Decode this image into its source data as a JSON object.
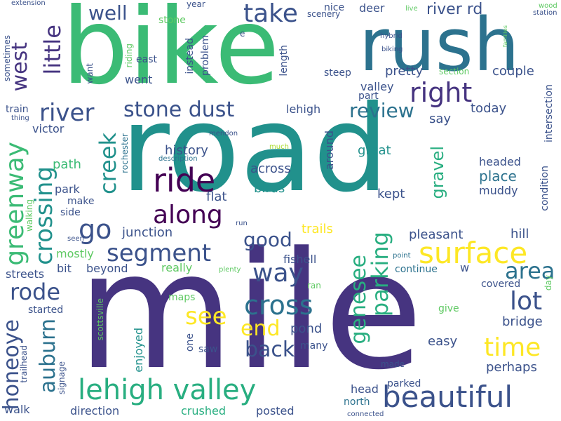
{
  "palette": {
    "dark_purple": "#440154",
    "indigo": "#463480",
    "slate_blue": "#3b528b",
    "steel_blue": "#2c728e",
    "teal": "#21918c",
    "sea_green": "#28ae80",
    "green": "#3bbb75",
    "light_green": "#5ec962",
    "lime": "#addc30",
    "yellow": "#fde725"
  },
  "words": [
    {
      "text": "road",
      "color": "#21918c"
    },
    {
      "text": "mile",
      "color": "#463480"
    },
    {
      "text": "bike",
      "color": "#3bbb75"
    },
    {
      "text": "rush",
      "color": "#2c728e"
    },
    {
      "text": "lehigh valley",
      "color": "#28ae80"
    },
    {
      "text": "beautiful",
      "color": "#3b528b"
    },
    {
      "text": "surface",
      "color": "#fde725"
    },
    {
      "text": "ride",
      "color": "#440154"
    },
    {
      "text": "stone dust",
      "color": "#3b528b"
    },
    {
      "text": "segment",
      "color": "#3b528b"
    },
    {
      "text": "cross",
      "color": "#2c728e"
    },
    {
      "text": "way",
      "color": "#3b528b"
    },
    {
      "text": "right",
      "color": "#463480"
    },
    {
      "text": "take",
      "color": "#3b528b"
    },
    {
      "text": "river",
      "color": "#3b528b"
    },
    {
      "text": "along",
      "color": "#440154"
    },
    {
      "text": "go",
      "color": "#3b528b"
    },
    {
      "text": "time",
      "color": "#fde725"
    },
    {
      "text": "lot",
      "color": "#3b528b"
    },
    {
      "text": "end",
      "color": "#fde725"
    },
    {
      "text": "back",
      "color": "#3b528b"
    },
    {
      "text": "see",
      "color": "#fde725"
    },
    {
      "text": "area",
      "color": "#2c728e"
    },
    {
      "text": "review",
      "color": "#2c728e"
    },
    {
      "text": "rode",
      "color": "#3b528b"
    },
    {
      "text": "well",
      "color": "#3b528b"
    },
    {
      "text": "good",
      "color": "#3b528b"
    },
    {
      "text": "river rd",
      "color": "#3b528b"
    },
    {
      "text": "honeoye",
      "color": "#3b528b"
    },
    {
      "text": "genesee",
      "color": "#28ae80"
    },
    {
      "text": "parking",
      "color": "#28ae80"
    },
    {
      "text": "greenway",
      "color": "#3bbb75"
    },
    {
      "text": "crossing",
      "color": "#21918c"
    },
    {
      "text": "creek",
      "color": "#21918c"
    },
    {
      "text": "auburn",
      "color": "#2c728e"
    },
    {
      "text": "little",
      "color": "#463480"
    },
    {
      "text": "west",
      "color": "#463480"
    },
    {
      "text": "gravel",
      "color": "#28ae80"
    },
    {
      "text": "pretty",
      "color": "#3b528b"
    },
    {
      "text": "couple",
      "color": "#3b528b"
    },
    {
      "text": "valley",
      "color": "#3b528b"
    },
    {
      "text": "lehigh",
      "color": "#3b528b"
    },
    {
      "text": "today",
      "color": "#3b528b"
    },
    {
      "text": "say",
      "color": "#3b528b"
    },
    {
      "text": "across",
      "color": "#3b528b"
    },
    {
      "text": "great",
      "color": "#21918c"
    },
    {
      "text": "place",
      "color": "#2c728e"
    },
    {
      "text": "headed",
      "color": "#3b528b"
    },
    {
      "text": "muddy",
      "color": "#3b528b"
    },
    {
      "text": "birds",
      "color": "#21918c"
    },
    {
      "text": "kept",
      "color": "#3b528b"
    },
    {
      "text": "history",
      "color": "#3b528b"
    },
    {
      "text": "flat",
      "color": "#3b528b"
    },
    {
      "text": "junction",
      "color": "#3b528b"
    },
    {
      "text": "trails",
      "color": "#fde725"
    },
    {
      "text": "pleasant",
      "color": "#3b528b"
    },
    {
      "text": "hill",
      "color": "#3b528b"
    },
    {
      "text": "park",
      "color": "#3b528b"
    },
    {
      "text": "path",
      "color": "#3bbb75"
    },
    {
      "text": "make",
      "color": "#3b528b"
    },
    {
      "text": "side",
      "color": "#3b528b"
    },
    {
      "text": "victor",
      "color": "#3b528b"
    },
    {
      "text": "train",
      "color": "#3b528b"
    },
    {
      "text": "fishell",
      "color": "#3b528b"
    },
    {
      "text": "continue",
      "color": "#2c728e"
    },
    {
      "text": "w",
      "color": "#3b528b"
    },
    {
      "text": "really",
      "color": "#5ec962"
    },
    {
      "text": "beyond",
      "color": "#3b528b"
    },
    {
      "text": "bit",
      "color": "#3b528b"
    },
    {
      "text": "streets",
      "color": "#3b528b"
    },
    {
      "text": "mostly",
      "color": "#5ec962"
    },
    {
      "text": "pond",
      "color": "#3b528b"
    },
    {
      "text": "easy",
      "color": "#3b528b"
    },
    {
      "text": "bridge",
      "color": "#3b528b"
    },
    {
      "text": "perhaps",
      "color": "#3b528b"
    },
    {
      "text": "covered",
      "color": "#3b528b"
    },
    {
      "text": "give",
      "color": "#5ec962"
    },
    {
      "text": "started",
      "color": "#3b528b"
    },
    {
      "text": "maps",
      "color": "#5ec962"
    },
    {
      "text": "enjoyed",
      "color": "#21918c"
    },
    {
      "text": "one",
      "color": "#3b528b"
    },
    {
      "text": "saw",
      "color": "#3b528b"
    },
    {
      "text": "many",
      "color": "#3b528b"
    },
    {
      "text": "made",
      "color": "#3b528b"
    },
    {
      "text": "head",
      "color": "#3b528b"
    },
    {
      "text": "parked",
      "color": "#3b528b"
    },
    {
      "text": "north",
      "color": "#2c728e"
    },
    {
      "text": "walk",
      "color": "#3b528b"
    },
    {
      "text": "direction",
      "color": "#3b528b"
    },
    {
      "text": "crushed",
      "color": "#28ae80"
    },
    {
      "text": "posted",
      "color": "#3b528b"
    },
    {
      "text": "connected",
      "color": "#3b528b"
    },
    {
      "text": "scottsville",
      "color": "#5ec962"
    },
    {
      "text": "signage",
      "color": "#3b528b"
    },
    {
      "text": "trailhead",
      "color": "#3b528b"
    },
    {
      "text": "ran",
      "color": "#5ec962"
    },
    {
      "text": "plenty",
      "color": "#5ec962"
    },
    {
      "text": "point",
      "color": "#2c728e"
    },
    {
      "text": "day",
      "color": "#5ec962"
    },
    {
      "text": "seen",
      "color": "#3b528b"
    },
    {
      "text": "walking",
      "color": "#5ec962"
    },
    {
      "text": "run",
      "color": "#3b528b"
    },
    {
      "text": "condition",
      "color": "#3b528b"
    },
    {
      "text": "intersection",
      "color": "#3b528b"
    },
    {
      "text": "description",
      "color": "#2c728e"
    },
    {
      "text": "mendon",
      "color": "#3b528b"
    },
    {
      "text": "much",
      "color": "#addc30"
    },
    {
      "text": "rochester",
      "color": "#2c728e"
    },
    {
      "text": "around",
      "color": "#3b528b"
    },
    {
      "text": "steep",
      "color": "#3b528b"
    },
    {
      "text": "part",
      "color": "#3b528b"
    },
    {
      "text": "section",
      "color": "#5ec962"
    },
    {
      "text": "length",
      "color": "#3b528b"
    },
    {
      "text": "instead",
      "color": "#3b528b"
    },
    {
      "text": "problem",
      "color": "#3b528b"
    },
    {
      "text": "went",
      "color": "#3b528b"
    },
    {
      "text": "east",
      "color": "#3b528b"
    },
    {
      "text": "riding",
      "color": "#5ec962"
    },
    {
      "text": "want",
      "color": "#3b528b"
    },
    {
      "text": "stone",
      "color": "#5ec962"
    },
    {
      "text": "year",
      "color": "#3b528b"
    },
    {
      "text": "e",
      "color": "#3b528b"
    },
    {
      "text": "nice",
      "color": "#3b528b"
    },
    {
      "text": "deer",
      "color": "#3b528b"
    },
    {
      "text": "scenery",
      "color": "#3b528b"
    },
    {
      "text": "live",
      "color": "#5ec962"
    },
    {
      "text": "hybrid",
      "color": "#3b528b"
    },
    {
      "text": "biking",
      "color": "#3b528b"
    },
    {
      "text": "families",
      "color": "#5ec962"
    },
    {
      "text": "wood",
      "color": "#5ec962"
    },
    {
      "text": "station",
      "color": "#3b528b"
    },
    {
      "text": "extension",
      "color": "#3b528b"
    },
    {
      "text": "sometimes",
      "color": "#3b528b"
    },
    {
      "text": "thing",
      "color": "#3b528b"
    }
  ]
}
